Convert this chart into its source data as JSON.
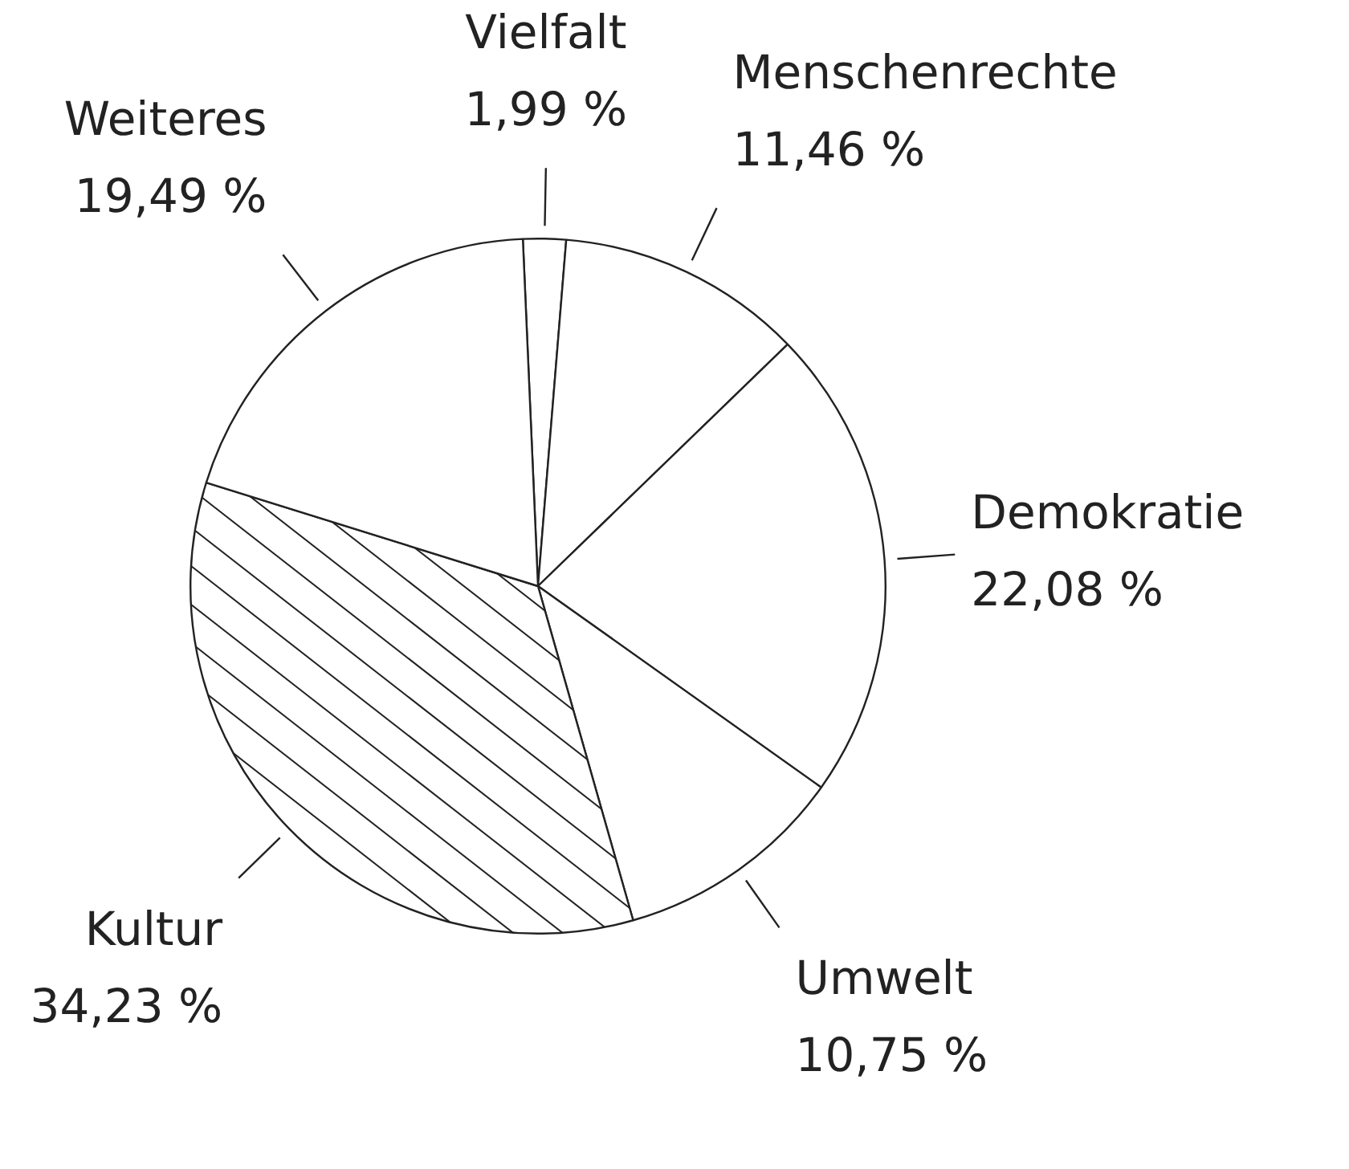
{
  "chart_data": {
    "type": "pie",
    "categories": [
      "Vielfalt",
      "Menschenrechte",
      "Demokratie",
      "Umwelt",
      "Kultur",
      "Weiteres"
    ],
    "values": [
      1.99,
      11.46,
      22.08,
      10.75,
      34.23,
      19.49
    ],
    "value_labels": [
      "1,99 %",
      "11,46 %",
      "22,08 %",
      "10,75 %",
      "34,23 %",
      "19,49 %"
    ],
    "colors": [
      "#ffffff",
      "#ffffff",
      "#ffffff",
      "#ffffff",
      "#ffffff",
      "#ffffff"
    ],
    "legend": false
  }
}
